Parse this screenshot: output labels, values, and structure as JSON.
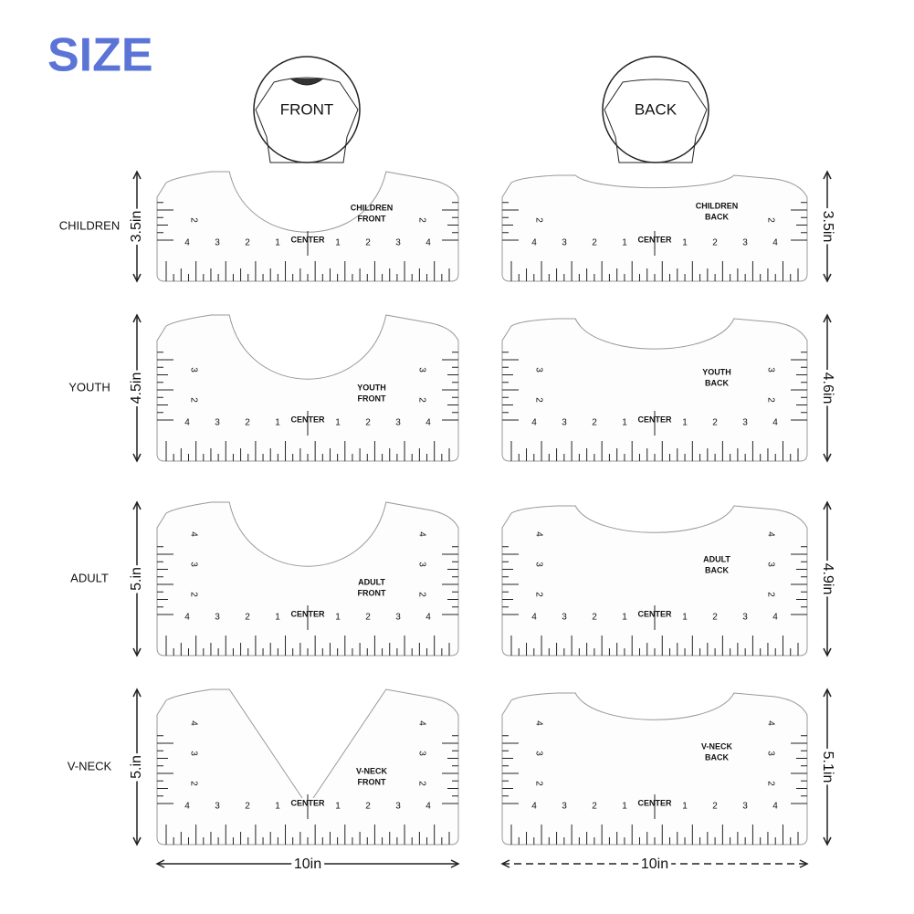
{
  "title": "SIZE",
  "views": [
    "FRONT",
    "BACK"
  ],
  "center": "CENTER",
  "bottom_scale": [
    "4",
    "3",
    "2",
    "1",
    "1",
    "2",
    "3",
    "4"
  ],
  "rows": [
    {
      "label": "CHILDREN",
      "front_height": "3.5in",
      "back_height": "3.5in",
      "front_name": [
        "CHILDREN",
        "FRONT"
      ],
      "back_name": [
        "CHILDREN",
        "BACK"
      ],
      "side_scale": [
        "2"
      ]
    },
    {
      "label": "YOUTH",
      "front_height": "4.5in",
      "back_height": "4.6in",
      "front_name": [
        "YOUTH",
        "FRONT"
      ],
      "back_name": [
        "YOUTH",
        "BACK"
      ],
      "side_scale": [
        "2",
        "3"
      ]
    },
    {
      "label": "ADULT",
      "front_height": "5.in",
      "back_height": "4.9in",
      "front_name": [
        "ADULT",
        "FRONT"
      ],
      "back_name": [
        "ADULT",
        "BACK"
      ],
      "side_scale": [
        "2",
        "3",
        "4"
      ]
    },
    {
      "label": "V-NECK",
      "front_height": "5.in",
      "back_height": "5.1in",
      "front_name": [
        "V-NECK",
        "FRONT"
      ],
      "back_name": [
        "V-NECK",
        "BACK"
      ],
      "side_scale": [
        "2",
        "3",
        "4"
      ]
    }
  ],
  "front_width": "10in",
  "back_width": "10in"
}
